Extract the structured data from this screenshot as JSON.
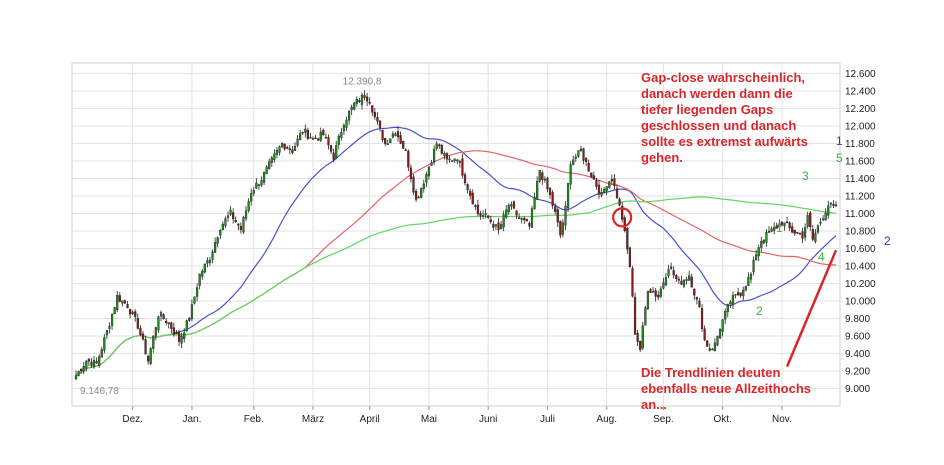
{
  "chart_data": {
    "type": "candlestick",
    "x_ticks": [
      {
        "label": "Dez.",
        "i": 22
      },
      {
        "label": "Jan.",
        "i": 45
      },
      {
        "label": "Feb.",
        "i": 69
      },
      {
        "label": "März",
        "i": 92
      },
      {
        "label": "April",
        "i": 114
      },
      {
        "label": "Mai",
        "i": 137
      },
      {
        "label": "Juni",
        "i": 160
      },
      {
        "label": "Juli",
        "i": 183
      },
      {
        "label": "Aug.",
        "i": 206
      },
      {
        "label": "Sep.",
        "i": 228
      },
      {
        "label": "Okt.",
        "i": 251
      },
      {
        "label": "Nov.",
        "i": 274
      }
    ],
    "y_ticks": [
      "12.600",
      "12.400",
      "12.200",
      "12.000",
      "11.800",
      "11.600",
      "11.400",
      "11.200",
      "11.000",
      "10.800",
      "10.600",
      "10.400",
      "10.200",
      "10.000",
      "9.800",
      "9.600",
      "9.400",
      "9.200",
      "9.000"
    ],
    "ylim": [
      8800,
      12720
    ],
    "n_days": 296,
    "grid": true,
    "extreme_labels": {
      "high": "12.390,8",
      "low": "9.146,78"
    },
    "series": [
      {
        "name": "",
        "color": "#4a52c8",
        "role": "ma-short"
      },
      {
        "name": "",
        "color": "#e26464",
        "role": "ma-mid"
      },
      {
        "name": "",
        "color": "#5fd65f",
        "role": "ma-long"
      }
    ],
    "close_anchors": [
      [
        0,
        9150
      ],
      [
        4,
        9320
      ],
      [
        8,
        9280
      ],
      [
        12,
        9650
      ],
      [
        16,
        10050
      ],
      [
        20,
        9950
      ],
      [
        24,
        9720
      ],
      [
        28,
        9320
      ],
      [
        32,
        9850
      ],
      [
        36,
        9750
      ],
      [
        40,
        9550
      ],
      [
        44,
        9800
      ],
      [
        48,
        10300
      ],
      [
        52,
        10500
      ],
      [
        56,
        10850
      ],
      [
        60,
        11000
      ],
      [
        64,
        10820
      ],
      [
        68,
        11250
      ],
      [
        72,
        11400
      ],
      [
        76,
        11600
      ],
      [
        80,
        11800
      ],
      [
        84,
        11720
      ],
      [
        88,
        11950
      ],
      [
        92,
        11850
      ],
      [
        96,
        11900
      ],
      [
        100,
        11650
      ],
      [
        104,
        12050
      ],
      [
        108,
        12250
      ],
      [
        112,
        12350
      ],
      [
        114,
        12300
      ],
      [
        116,
        12100
      ],
      [
        120,
        11800
      ],
      [
        124,
        11950
      ],
      [
        128,
        11700
      ],
      [
        132,
        11150
      ],
      [
        136,
        11450
      ],
      [
        140,
        11800
      ],
      [
        144,
        11600
      ],
      [
        148,
        11650
      ],
      [
        152,
        11300
      ],
      [
        156,
        11000
      ],
      [
        160,
        10950
      ],
      [
        164,
        10800
      ],
      [
        168,
        11100
      ],
      [
        172,
        10950
      ],
      [
        176,
        10850
      ],
      [
        180,
        11500
      ],
      [
        184,
        11200
      ],
      [
        186,
        11000
      ],
      [
        188,
        10750
      ],
      [
        190,
        11050
      ],
      [
        192,
        11600
      ],
      [
        196,
        11700
      ],
      [
        200,
        11450
      ],
      [
        204,
        11200
      ],
      [
        206,
        11350
      ],
      [
        208,
        11400
      ],
      [
        210,
        11200
      ],
      [
        212,
        10950
      ],
      [
        215,
        10400
      ],
      [
        217,
        9650
      ],
      [
        219,
        9450
      ],
      [
        222,
        10150
      ],
      [
        226,
        10050
      ],
      [
        230,
        10400
      ],
      [
        234,
        10200
      ],
      [
        238,
        10300
      ],
      [
        242,
        9900
      ],
      [
        244,
        9550
      ],
      [
        246,
        9450
      ],
      [
        248,
        9500
      ],
      [
        250,
        9700
      ],
      [
        254,
        10000
      ],
      [
        258,
        10100
      ],
      [
        262,
        10300
      ],
      [
        264,
        10550
      ],
      [
        266,
        10700
      ],
      [
        270,
        10800
      ],
      [
        274,
        10900
      ],
      [
        278,
        10800
      ],
      [
        282,
        10750
      ],
      [
        284,
        10950
      ],
      [
        286,
        10700
      ],
      [
        288,
        10850
      ],
      [
        292,
        11100
      ],
      [
        295,
        11050
      ]
    ],
    "gap_marker_day": 212,
    "trendline": {
      "from": {
        "day": 276,
        "value": 9250
      },
      "to": {
        "day": 295,
        "value": 10580
      }
    }
  },
  "annotations": {
    "top_note": "Gap-close wahrscheinlich,\ndanach werden dann die\ntiefer liegenden Gaps\ngeschlossen und danach\nsollte es extremst aufwärts\ngehen.",
    "bottom_note": "Die Trendlinien deuten\nebenfalls neue Allzeithochs\nan...",
    "waves": [
      {
        "text": "1",
        "color": "#3a3aa8",
        "pos": "right-top"
      },
      {
        "text": "5",
        "color": "#39b539",
        "pos": "right-top"
      },
      {
        "text": "3",
        "color": "#39b539",
        "pos": "right"
      },
      {
        "text": "2",
        "color": "#3a3aa8",
        "pos": "right-edge"
      },
      {
        "text": "4",
        "color": "#39b539",
        "pos": "right"
      },
      {
        "text": "1",
        "color": "#39b539",
        "pos": "bottom-right"
      },
      {
        "text": "2",
        "color": "#39b539",
        "pos": "bottom-right"
      }
    ]
  }
}
